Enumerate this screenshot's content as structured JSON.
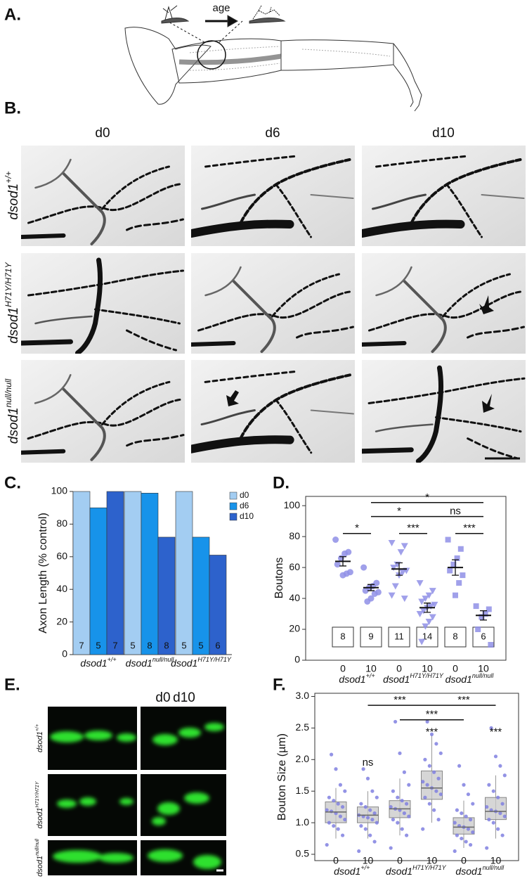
{
  "panel_labels": [
    "A.",
    "B.",
    "C.",
    "D.",
    "E.",
    "F."
  ],
  "panel_a": {
    "arrow_label": "age"
  },
  "panel_b": {
    "columns": [
      "d0",
      "d6",
      "d10"
    ],
    "rows": [
      {
        "base": "dsod1",
        "sup": "+/+"
      },
      {
        "base": "dsod1",
        "sup": "H71Y/H71Y"
      },
      {
        "base": "dsod1",
        "sup": "null/null"
      }
    ]
  },
  "panel_e": {
    "columns": [
      "d0",
      "d10"
    ],
    "rows": [
      {
        "base": "dsod1",
        "sup": "+/+"
      },
      {
        "base": "dsod1",
        "sup": "H71Y/H71Y"
      },
      {
        "base": "dsod1",
        "sup": "null/null"
      }
    ]
  },
  "chart_data": [
    {
      "type": "bar",
      "ylabel": "Axon Length (% control)",
      "categories": [
        {
          "base": "dsod1",
          "sup": "+/+"
        },
        {
          "base": "dsod1",
          "sup": "null/null"
        },
        {
          "base": "dsod1",
          "sup": "H71Y/H71Y"
        }
      ],
      "series": [
        {
          "name": "d0",
          "color": "#a3cdf2",
          "values": [
            100,
            100,
            100
          ],
          "n": [
            7,
            5,
            5
          ]
        },
        {
          "name": "d6",
          "color": "#1793ea",
          "values": [
            90,
            99,
            72
          ],
          "n": [
            5,
            8,
            5
          ]
        },
        {
          "name": "d10",
          "color": "#2d62cc",
          "values": [
            100,
            72,
            61
          ],
          "n": [
            7,
            8,
            6
          ]
        }
      ],
      "ylim": [
        0,
        100
      ],
      "yticks": [
        0,
        20,
        40,
        60,
        80,
        100
      ],
      "legend": "top-right"
    },
    {
      "type": "dot",
      "ylabel": "Boutons",
      "categories": [
        "0",
        "10",
        "0",
        "10",
        "0",
        "10"
      ],
      "group_labels": [
        {
          "base": "dsod1",
          "sup": "+/+"
        },
        {
          "base": "dsod1",
          "sup": "H71Y/H71Y"
        },
        {
          "base": "dsod1",
          "sup": "null/null"
        }
      ],
      "markers": [
        "circle",
        "triangle",
        "square"
      ],
      "color": "#8f8fe6",
      "points": [
        [
          78,
          70,
          69,
          66,
          62,
          57,
          56,
          55
        ],
        [
          60,
          50,
          48,
          47,
          45,
          44,
          43,
          40,
          38
        ],
        [
          76,
          74,
          70,
          62,
          60,
          58,
          57,
          55,
          48,
          42,
          40
        ],
        [
          50,
          45,
          42,
          40,
          38,
          36,
          35,
          34,
          32,
          30,
          28,
          25,
          22,
          12
        ],
        [
          78,
          72,
          66,
          62,
          58,
          55,
          50,
          42
        ],
        [
          35,
          33,
          30,
          28,
          20,
          10
        ]
      ],
      "means": [
        64,
        47,
        59,
        34,
        60,
        29
      ],
      "sem": [
        3,
        2,
        4,
        3,
        5,
        3
      ],
      "n": [
        8,
        9,
        11,
        14,
        8,
        6
      ],
      "ylim": [
        0,
        106
      ],
      "yticks": [
        0,
        20,
        40,
        60,
        80,
        100
      ],
      "significance": [
        {
          "from": 1,
          "to": 5,
          "y": 102,
          "label": "*"
        },
        {
          "from": 1,
          "to": 3,
          "y": 93,
          "label": "*"
        },
        {
          "from": 3,
          "to": 5,
          "y": 93,
          "label": "ns"
        },
        {
          "from": 0,
          "to": 1,
          "y": 82,
          "label": "*"
        },
        {
          "from": 2,
          "to": 3,
          "y": 82,
          "label": "***"
        },
        {
          "from": 4,
          "to": 5,
          "y": 82,
          "label": "***"
        }
      ]
    },
    {
      "type": "box",
      "ylabel": "Bouton Size (µm)",
      "categories": [
        "0",
        "10",
        "0",
        "10",
        "0",
        "10"
      ],
      "group_labels": [
        {
          "base": "dsod1",
          "sup": "+/+"
        },
        {
          "base": "dsod1",
          "sup": "H71Y/H71Y"
        },
        {
          "base": "dsod1",
          "sup": "null/null"
        }
      ],
      "color": "#8080e0",
      "boxes": [
        {
          "whislo": 0.75,
          "q1": 1.0,
          "med": 1.17,
          "q3": 1.33,
          "whishi": 1.55
        },
        {
          "whislo": 0.75,
          "q1": 1.0,
          "med": 1.12,
          "q3": 1.25,
          "whishi": 1.5
        },
        {
          "whislo": 0.8,
          "q1": 1.08,
          "med": 1.22,
          "q3": 1.35,
          "whishi": 1.7
        },
        {
          "whislo": 1.0,
          "q1": 1.37,
          "med": 1.55,
          "q3": 1.82,
          "whishi": 2.4
        },
        {
          "whislo": 0.6,
          "q1": 0.82,
          "med": 0.93,
          "q3": 1.08,
          "whishi": 1.35
        },
        {
          "whislo": 0.75,
          "q1": 1.05,
          "med": 1.18,
          "q3": 1.4,
          "whishi": 1.75
        }
      ],
      "points": [
        [
          0.65,
          0.8,
          0.9,
          0.95,
          1.0,
          1.05,
          1.1,
          1.15,
          1.18,
          1.2,
          1.25,
          1.3,
          1.35,
          1.4,
          1.5,
          1.6,
          1.85,
          2.08
        ],
        [
          0.55,
          0.7,
          0.8,
          0.9,
          0.95,
          1.0,
          1.05,
          1.08,
          1.1,
          1.12,
          1.15,
          1.2,
          1.25,
          1.3,
          1.4,
          1.5,
          1.7,
          1.85
        ],
        [
          0.6,
          0.8,
          0.9,
          1.0,
          1.05,
          1.1,
          1.15,
          1.2,
          1.22,
          1.25,
          1.3,
          1.35,
          1.4,
          1.5,
          1.6,
          1.8,
          2.1,
          2.6
        ],
        [
          0.9,
          1.05,
          1.2,
          1.3,
          1.4,
          1.45,
          1.5,
          1.55,
          1.6,
          1.65,
          1.7,
          1.8,
          1.9,
          2.0,
          2.1,
          2.25,
          2.4,
          2.6
        ],
        [
          0.55,
          0.65,
          0.7,
          0.75,
          0.8,
          0.85,
          0.9,
          0.93,
          0.95,
          1.0,
          1.05,
          1.1,
          1.15,
          1.2,
          1.3,
          1.45,
          1.6,
          1.9
        ],
        [
          0.6,
          0.8,
          0.9,
          1.0,
          1.05,
          1.1,
          1.15,
          1.18,
          1.2,
          1.25,
          1.3,
          1.4,
          1.5,
          1.6,
          1.75,
          1.9,
          2.05,
          2.5
        ]
      ],
      "ylim": [
        0.4,
        3.05
      ],
      "yticks": [
        0.5,
        {
          "value": 1,
          "label": "1.0"
        },
        1.5,
        {
          "value": 2,
          "label": "2.0"
        },
        2.5,
        {
          "value": 3,
          "label": "3.0"
        }
      ],
      "significance": [
        {
          "from": 1,
          "to": 3,
          "y": 2.86,
          "label": "***"
        },
        {
          "from": 2,
          "to": 4,
          "y": 2.63,
          "label": "***"
        },
        {
          "from": 3,
          "to": 5,
          "y": 2.86,
          "label": "***"
        }
      ],
      "annotations": [
        {
          "category": 1,
          "y": 1.95,
          "label": "ns"
        },
        {
          "category": 3,
          "y": 2.43,
          "label": "***"
        },
        {
          "category": 5,
          "y": 2.43,
          "label": "***"
        }
      ]
    }
  ]
}
